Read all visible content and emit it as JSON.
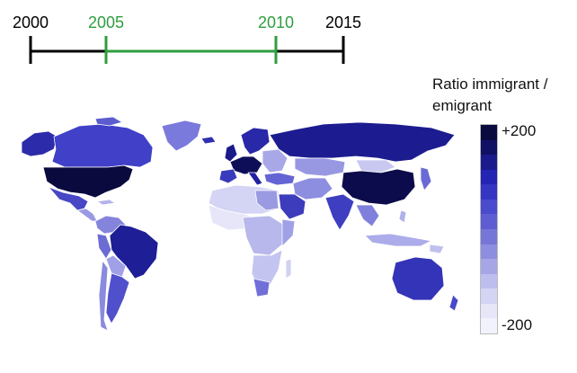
{
  "timeline": {
    "years": [
      "2000",
      "2005",
      "2010",
      "2015"
    ],
    "selected_start": "2005",
    "selected_end": "2010",
    "colors": {
      "axis": "#000000",
      "selected": "#2e9e3e"
    }
  },
  "legend": {
    "title_line1": "Ratio immigrant /",
    "title_line2": "emigrant",
    "max_label": "+200",
    "min_label": "-200",
    "steps": [
      "#0a0a3f",
      "#101064",
      "#1a1a8c",
      "#2323b4",
      "#3535c4",
      "#4a4acc",
      "#5e5ed2",
      "#7676d8",
      "#8e8ee0",
      "#a6a6e6",
      "#bebeee",
      "#d4d4f4",
      "#e6e6f8",
      "#f2f2fc"
    ]
  },
  "map": {
    "colors": {
      "ocean": "#ffffff",
      "border": "#ffffff",
      "land_default": "#c8c8ee"
    }
  }
}
